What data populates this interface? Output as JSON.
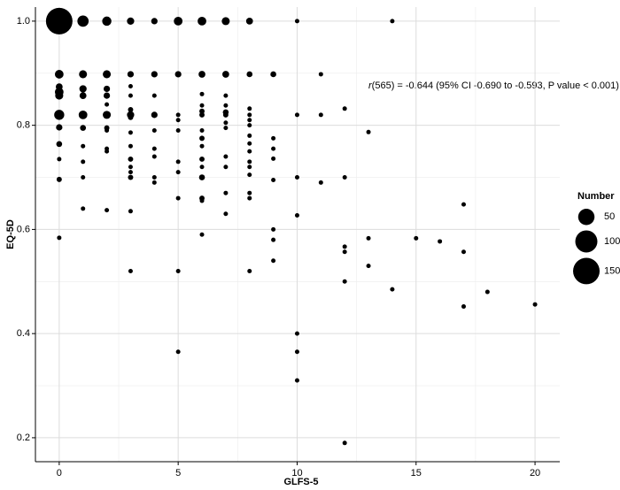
{
  "chart_data": {
    "type": "bubble",
    "annotation": {
      "italic": "r",
      "text": "(565) = -0.644 (95% CI -0.690 to -0.593, P value < 0.001)"
    },
    "x_label": "GLFS-5",
    "y_label": "EQ-5D",
    "color": "#000000",
    "x": [
      0,
      0,
      0,
      0,
      0,
      0,
      0,
      0,
      0,
      0,
      0,
      1,
      1,
      1,
      1,
      1,
      1,
      1,
      1,
      1,
      1,
      2,
      2,
      2,
      2,
      2,
      2,
      2,
      2,
      2,
      2,
      2,
      3,
      3,
      3,
      3,
      3,
      3,
      3,
      3,
      3,
      3,
      3,
      3,
      3,
      3,
      3,
      4,
      4,
      4,
      4,
      4,
      4,
      4,
      4,
      4,
      5,
      5,
      5,
      5,
      5,
      5,
      5,
      5,
      5,
      5,
      6,
      6,
      6,
      6,
      6,
      6,
      6,
      6,
      6,
      6,
      6,
      6,
      6,
      6,
      6,
      7,
      7,
      7,
      7,
      7,
      7,
      7,
      7,
      7,
      7,
      7,
      7,
      8,
      8,
      8,
      8,
      8,
      8,
      8,
      8,
      8,
      8,
      8,
      8,
      8,
      8,
      8,
      9,
      9,
      9,
      9,
      9,
      9,
      9,
      9,
      10,
      10,
      10,
      10,
      10,
      10,
      10,
      11,
      11,
      11,
      12,
      12,
      12,
      12,
      12,
      12,
      13,
      13,
      13,
      14,
      14,
      15,
      16,
      17,
      17,
      17,
      18,
      20
    ],
    "values": [
      1.0,
      0.898,
      0.874,
      0.864,
      0.857,
      0.82,
      0.796,
      0.764,
      0.735,
      0.696,
      0.584,
      1.0,
      0.898,
      0.87,
      0.857,
      0.82,
      0.795,
      0.76,
      0.73,
      0.7,
      0.64,
      1.0,
      0.898,
      0.87,
      0.857,
      0.84,
      0.82,
      0.795,
      0.79,
      0.755,
      0.75,
      0.637,
      1.0,
      0.898,
      0.875,
      0.857,
      0.83,
      0.82,
      0.815,
      0.786,
      0.76,
      0.735,
      0.72,
      0.71,
      0.7,
      0.635,
      0.52,
      1.0,
      0.898,
      0.857,
      0.82,
      0.79,
      0.755,
      0.74,
      0.7,
      0.69,
      1.0,
      0.898,
      0.82,
      0.81,
      0.79,
      0.73,
      0.71,
      0.66,
      0.52,
      0.365,
      1.0,
      0.898,
      0.86,
      0.838,
      0.827,
      0.82,
      0.79,
      0.775,
      0.76,
      0.735,
      0.72,
      0.7,
      0.66,
      0.655,
      0.59,
      1.0,
      0.898,
      0.857,
      0.838,
      0.825,
      0.82,
      0.805,
      0.795,
      0.74,
      0.72,
      0.67,
      0.63,
      1.0,
      0.898,
      0.832,
      0.82,
      0.81,
      0.8,
      0.78,
      0.765,
      0.75,
      0.73,
      0.72,
      0.705,
      0.67,
      0.66,
      0.52,
      0.898,
      0.775,
      0.755,
      0.736,
      0.695,
      0.6,
      0.58,
      0.54,
      1.0,
      0.82,
      0.7,
      0.627,
      0.4,
      0.365,
      0.31,
      0.898,
      0.82,
      0.69,
      0.832,
      0.7,
      0.567,
      0.557,
      0.5,
      0.19,
      0.787,
      0.583,
      0.53,
      1.0,
      0.485,
      0.583,
      0.577,
      0.648,
      0.557,
      0.452,
      0.48,
      0.456
    ],
    "sizes": [
      150,
      10,
      5,
      10,
      8,
      15,
      4,
      3,
      1,
      2,
      1,
      20,
      8,
      6,
      5,
      10,
      3,
      1,
      1,
      1,
      1,
      12,
      8,
      4,
      4,
      1,
      8,
      2,
      1,
      1,
      1,
      1,
      6,
      4,
      1,
      1,
      2,
      6,
      2,
      1,
      1,
      2,
      1,
      1,
      2,
      1,
      1,
      4,
      4,
      1,
      4,
      1,
      1,
      1,
      1,
      1,
      10,
      4,
      1,
      1,
      1,
      1,
      1,
      1,
      1,
      1,
      10,
      5,
      1,
      1,
      2,
      2,
      1,
      2,
      1,
      2,
      1,
      3,
      2,
      1,
      1,
      8,
      5,
      1,
      1,
      3,
      2,
      1,
      1,
      1,
      1,
      1,
      1,
      5,
      3,
      1,
      1,
      1,
      1,
      1,
      1,
      1,
      1,
      1,
      1,
      1,
      1,
      1,
      3,
      1,
      1,
      1,
      1,
      1,
      1,
      1,
      1,
      1,
      1,
      1,
      1,
      1,
      1,
      1,
      1,
      1,
      1,
      1,
      1,
      1,
      1,
      1,
      1,
      1,
      1,
      1,
      1,
      1,
      1,
      1,
      1,
      1,
      1,
      1
    ],
    "xlim": [
      -1,
      21.04
    ],
    "ylim": [
      0.154,
      1.027
    ],
    "xticks": [
      0,
      5,
      10,
      15,
      20
    ],
    "yticks": [
      0.2,
      0.4,
      0.6,
      0.8,
      {
        "value": 1,
        "label": "1.0"
      }
    ],
    "x_minor": [
      2.5,
      7.5,
      12.5,
      17.5
    ],
    "y_minor": [
      0.3,
      0.5,
      0.7,
      0.9
    ],
    "grid": true,
    "size_legend": {
      "title": "Number",
      "values": [
        50,
        100,
        150
      ]
    }
  }
}
